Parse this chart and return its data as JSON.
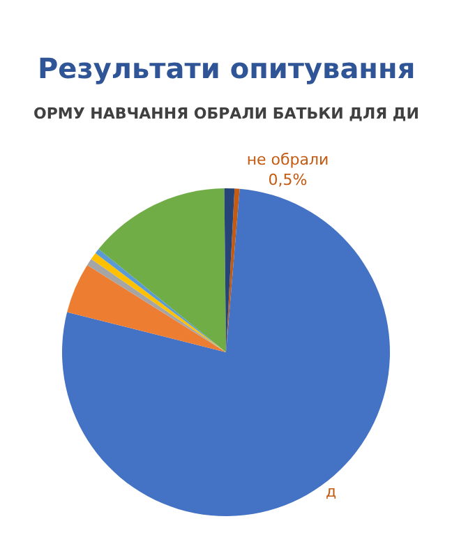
{
  "chart_data": {
    "type": "pie",
    "title": "Результати опитування",
    "subtitle": "ОРМУ НАВЧАННЯ ОБРАЛИ БАТЬКИ ДЛЯ ДИ",
    "categories": [
      "не обрали",
      "д",
      null,
      null,
      null,
      null,
      null,
      null
    ],
    "values": [
      0.5,
      77.6,
      5,
      0.7,
      0.7,
      0.5,
      14,
      1
    ],
    "value_labels": [
      "0,5%",
      null,
      null,
      null,
      null,
      null,
      null,
      null
    ],
    "colors": [
      "#c55a11",
      "#4472c4",
      "#ed7d31",
      "#a5a5a5",
      "#ffc000",
      "#5b9bd5",
      "#70ad47",
      "#264478"
    ],
    "legend": false
  }
}
